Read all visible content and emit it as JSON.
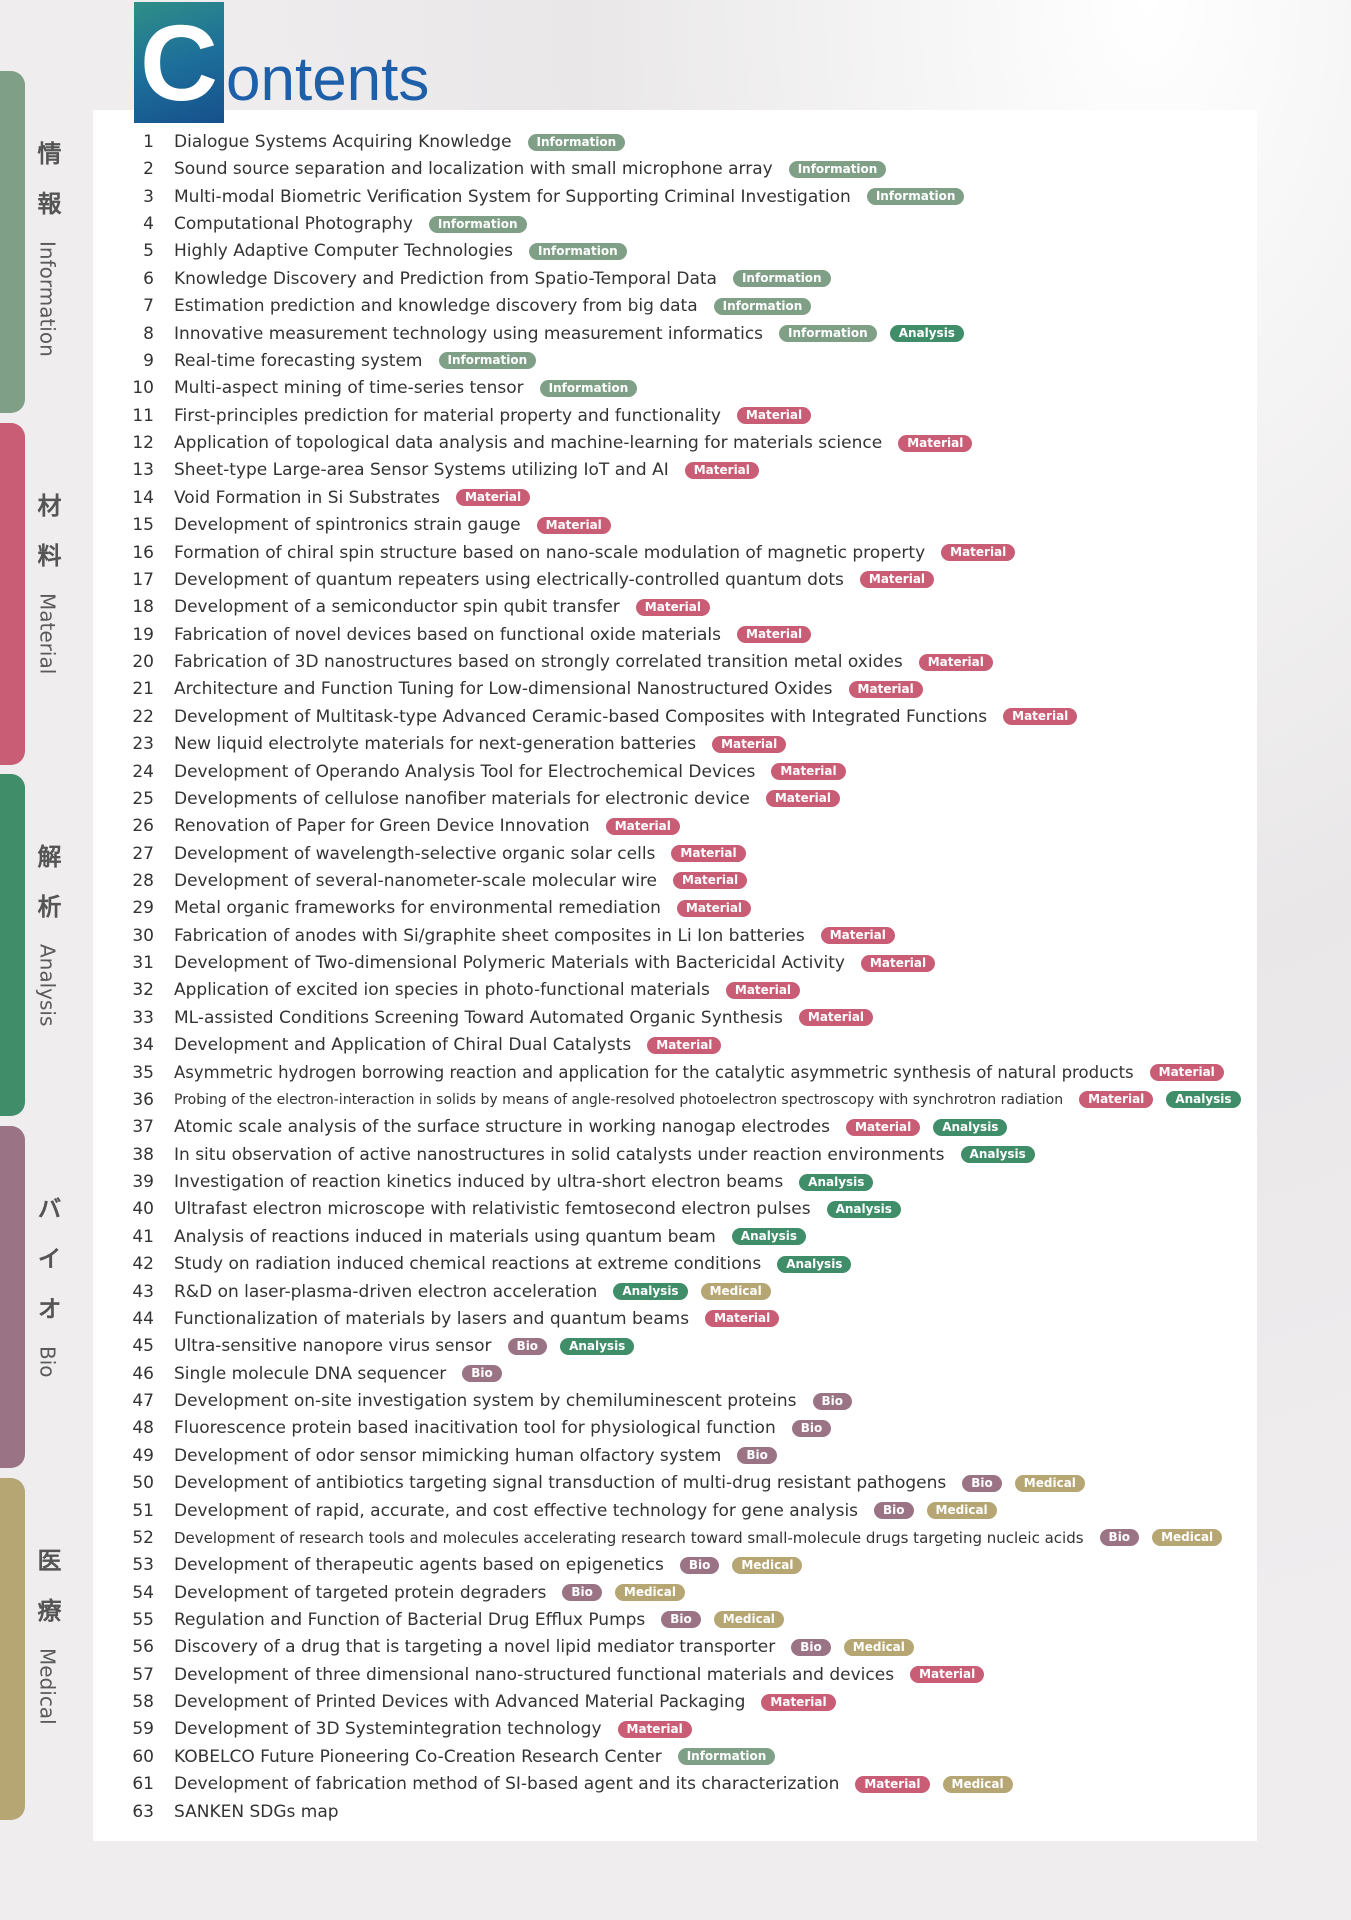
{
  "title": "Contents",
  "sections": [
    {
      "kanji": "情報",
      "label": "Information",
      "color": "#7f9f86"
    },
    {
      "kanji": "材料",
      "label": "Material",
      "color": "#c95d75"
    },
    {
      "kanji": "解析",
      "label": "Analysis",
      "color": "#3f8d69"
    },
    {
      "kanji": "バイオ",
      "label": "Bio",
      "color": "#9a7385"
    },
    {
      "kanji": "医療",
      "label": "Medical",
      "color": "#b5a674"
    }
  ],
  "items": [
    {
      "number": 1,
      "title": "Dialogue Systems Acquiring Knowledge",
      "tags": [
        "Information"
      ]
    },
    {
      "number": 2,
      "title": "Sound source separation and localization with small microphone array",
      "tags": [
        "Information"
      ]
    },
    {
      "number": 3,
      "title": "Multi-modal Biometric Verification System for Supporting Criminal Investigation",
      "tags": [
        "Information"
      ]
    },
    {
      "number": 4,
      "title": "Computational Photography",
      "tags": [
        "Information"
      ]
    },
    {
      "number": 5,
      "title": "Highly Adaptive Computer Technologies",
      "tags": [
        "Information"
      ]
    },
    {
      "number": 6,
      "title": "Knowledge Discovery and Prediction from Spatio-Temporal Data",
      "tags": [
        "Information"
      ]
    },
    {
      "number": 7,
      "title": "Estimation prediction and knowledge discovery from big data",
      "tags": [
        "Information"
      ]
    },
    {
      "number": 8,
      "title": "Innovative measurement technology using measurement informatics",
      "tags": [
        "Information",
        "Analysis"
      ]
    },
    {
      "number": 9,
      "title": "Real-time forecasting system",
      "tags": [
        "Information"
      ]
    },
    {
      "number": 10,
      "title": "Multi-aspect mining of time-series tensor",
      "tags": [
        "Information"
      ]
    },
    {
      "number": 11,
      "title": "First-principles prediction for material property and functionality",
      "tags": [
        "Material"
      ]
    },
    {
      "number": 12,
      "title": "Application of topological data analysis and machine-learning for materials science",
      "tags": [
        "Material"
      ]
    },
    {
      "number": 13,
      "title": "Sheet-type Large-area Sensor Systems utilizing IoT and AI",
      "tags": [
        "Material"
      ]
    },
    {
      "number": 14,
      "title": "Void Formation in Si Substrates",
      "tags": [
        "Material"
      ]
    },
    {
      "number": 15,
      "title": "Development of spintronics strain gauge",
      "tags": [
        "Material"
      ]
    },
    {
      "number": 16,
      "title": "Formation of chiral spin structure based on nano-scale modulation of magnetic property",
      "tags": [
        "Material"
      ]
    },
    {
      "number": 17,
      "title": "Development of quantum repeaters using electrically-controlled quantum dots",
      "tags": [
        "Material"
      ]
    },
    {
      "number": 18,
      "title": "Development of a semiconductor spin qubit transfer",
      "tags": [
        "Material"
      ]
    },
    {
      "number": 19,
      "title": "Fabrication of novel devices based on functional oxide materials",
      "tags": [
        "Material"
      ]
    },
    {
      "number": 20,
      "title": "Fabrication of 3D nanostructures based on strongly correlated transition metal oxides",
      "tags": [
        "Material"
      ]
    },
    {
      "number": 21,
      "title": "Architecture and Function Tuning for Low-dimensional Nanostructured Oxides",
      "tags": [
        "Material"
      ]
    },
    {
      "number": 22,
      "title": "Development of Multitask-type Advanced Ceramic-based Composites with Integrated Functions",
      "tags": [
        "Material"
      ]
    },
    {
      "number": 23,
      "title": "New liquid electrolyte materials for next-generation batteries",
      "tags": [
        "Material"
      ]
    },
    {
      "number": 24,
      "title": "Development of Operando Analysis Tool for Electrochemical Devices",
      "tags": [
        "Material"
      ]
    },
    {
      "number": 25,
      "title": "Developments of cellulose nanofiber materials for electronic device",
      "tags": [
        "Material"
      ]
    },
    {
      "number": 26,
      "title": "Renovation of Paper for Green Device Innovation",
      "tags": [
        "Material"
      ]
    },
    {
      "number": 27,
      "title": "Development of wavelength-selective organic solar cells",
      "tags": [
        "Material"
      ]
    },
    {
      "number": 28,
      "title": "Development of several-nanometer-scale molecular wire",
      "tags": [
        "Material"
      ]
    },
    {
      "number": 29,
      "title": "Metal organic frameworks for environmental remediation",
      "tags": [
        "Material"
      ]
    },
    {
      "number": 30,
      "title": "Fabrication of anodes with Si/graphite sheet composites in Li Ion batteries",
      "tags": [
        "Material"
      ]
    },
    {
      "number": 31,
      "title": "Development of Two-dimensional Polymeric Materials with Bactericidal Activity",
      "tags": [
        "Material"
      ]
    },
    {
      "number": 32,
      "title": "Application of excited ion species in photo-functional materials",
      "tags": [
        "Material"
      ]
    },
    {
      "number": 33,
      "title": "ML-assisted Conditions Screening Toward Automated Organic Synthesis",
      "tags": [
        "Material"
      ]
    },
    {
      "number": 34,
      "title": "Development and Application of Chiral Dual Catalysts",
      "tags": [
        "Material"
      ]
    },
    {
      "number": 35,
      "title": "Asymmetric hydrogen borrowing reaction and application for the catalytic asymmetric synthesis of natural products",
      "tags": [
        "Material"
      ]
    },
    {
      "number": 36,
      "title": "Probing of the electron-interaction in solids by means of angle-resolved photoelectron spectroscopy with synchrotron radiation",
      "tags": [
        "Material",
        "Analysis"
      ]
    },
    {
      "number": 37,
      "title": "Atomic scale analysis of the surface structure in working nanogap electrodes",
      "tags": [
        "Material",
        "Analysis"
      ]
    },
    {
      "number": 38,
      "title": "In situ observation of active nanostructures in solid catalysts under reaction environments",
      "tags": [
        "Analysis"
      ]
    },
    {
      "number": 39,
      "title": "Investigation of reaction kinetics induced by ultra-short electron beams",
      "tags": [
        "Analysis"
      ]
    },
    {
      "number": 40,
      "title": "Ultrafast electron microscope with relativistic femtosecond electron pulses",
      "tags": [
        "Analysis"
      ]
    },
    {
      "number": 41,
      "title": "Analysis of reactions induced in materials using quantum beam",
      "tags": [
        "Analysis"
      ]
    },
    {
      "number": 42,
      "title": "Study on radiation induced chemical reactions at extreme conditions",
      "tags": [
        "Analysis"
      ]
    },
    {
      "number": 43,
      "title": "R&D on laser-plasma-driven electron acceleration",
      "tags": [
        "Analysis",
        "Medical"
      ]
    },
    {
      "number": 44,
      "title": "Functionalization of materials by lasers and quantum beams",
      "tags": [
        "Material"
      ]
    },
    {
      "number": 45,
      "title": "Ultra-sensitive nanopore virus sensor",
      "tags": [
        "Bio",
        "Analysis"
      ]
    },
    {
      "number": 46,
      "title": "Single molecule DNA sequencer",
      "tags": [
        "Bio"
      ]
    },
    {
      "number": 47,
      "title": "Development on-site investigation system by chemiluminescent proteins",
      "tags": [
        "Bio"
      ]
    },
    {
      "number": 48,
      "title": "Fluorescence protein based inacitivation tool for physiological function",
      "tags": [
        "Bio"
      ]
    },
    {
      "number": 49,
      "title": "Development of odor sensor mimicking human olfactory system",
      "tags": [
        "Bio"
      ]
    },
    {
      "number": 50,
      "title": "Development of antibiotics targeting signal transduction of multi-drug resistant pathogens",
      "tags": [
        "Bio",
        "Medical"
      ]
    },
    {
      "number": 51,
      "title": "Development of rapid, accurate, and cost effective technology for gene analysis",
      "tags": [
        "Bio",
        "Medical"
      ]
    },
    {
      "number": 52,
      "title": "Development of research tools and molecules accelerating research toward small-molecule drugs targeting nucleic acids",
      "tags": [
        "Bio",
        "Medical"
      ]
    },
    {
      "number": 53,
      "title": "Development of therapeutic agents based on epigenetics",
      "tags": [
        "Bio",
        "Medical"
      ]
    },
    {
      "number": 54,
      "title": "Development of targeted protein degraders",
      "tags": [
        "Bio",
        "Medical"
      ]
    },
    {
      "number": 55,
      "title": "Regulation and Function of Bacterial Drug Efflux Pumps",
      "tags": [
        "Bio",
        "Medical"
      ]
    },
    {
      "number": 56,
      "title": "Discovery of a drug that is targeting a novel lipid mediator transporter",
      "tags": [
        "Bio",
        "Medical"
      ]
    },
    {
      "number": 57,
      "title": "Development of three dimensional nano-structured functional materials and devices",
      "tags": [
        "Material"
      ]
    },
    {
      "number": 58,
      "title": "Development of Printed Devices with Advanced Material Packaging",
      "tags": [
        "Material"
      ]
    },
    {
      "number": 59,
      "title": "Development of 3D Systemintegration technology",
      "tags": [
        "Material"
      ]
    },
    {
      "number": 60,
      "title": "KOBELCO Future Pioneering Co-Creation Research Center",
      "tags": [
        "Information"
      ]
    },
    {
      "number": 61,
      "title": "Development of fabrication method of SI-based agent and its characterization",
      "tags": [
        "Material",
        "Medical"
      ]
    },
    {
      "number": 63,
      "title": "SANKEN SDGs map",
      "tags": []
    }
  ]
}
